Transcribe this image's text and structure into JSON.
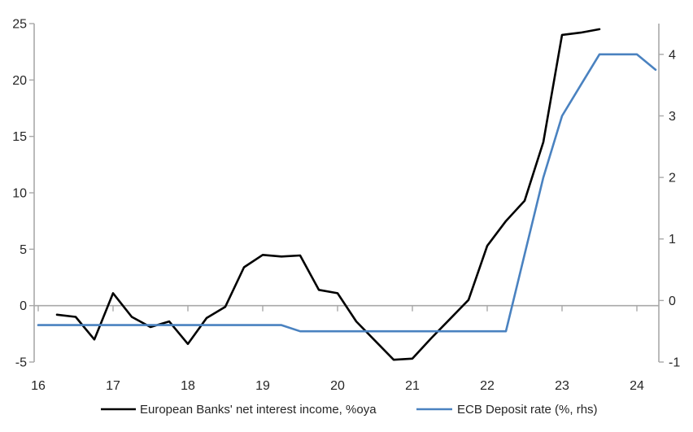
{
  "figure": {
    "background": "#ffffff",
    "axis_color": "#a8a8a8",
    "label_color": "#262626"
  },
  "chart_data": {
    "type": "line",
    "title": "",
    "grid": "zero-line-only",
    "legend_position": "bottom",
    "x_axis": {
      "tick_labels": [
        "16",
        "17",
        "18",
        "19",
        "20",
        "21",
        "22",
        "23",
        "24"
      ],
      "tick_values": [
        16,
        17,
        18,
        19,
        20,
        21,
        22,
        23,
        24
      ],
      "range": [
        16,
        24.3
      ]
    },
    "left_axis": {
      "tick_labels": [
        "-5",
        "0",
        "5",
        "10",
        "15",
        "20",
        "25"
      ],
      "tick_values": [
        -5,
        0,
        5,
        10,
        15,
        20,
        25
      ],
      "range": [
        -5,
        25
      ]
    },
    "right_axis": {
      "tick_labels": [
        "-1",
        "0",
        "1",
        "2",
        "3",
        "4"
      ],
      "tick_values": [
        -1,
        0,
        1,
        2,
        3,
        4
      ],
      "range": [
        -1,
        4.5
      ]
    },
    "series": [
      {
        "name": "European Banks' net interest income, %oya",
        "axis": "left",
        "color": "#000000",
        "x": [
          16.25,
          16.5,
          16.75,
          17.0,
          17.25,
          17.5,
          17.75,
          18.0,
          18.25,
          18.5,
          18.75,
          19.0,
          19.25,
          19.5,
          19.75,
          20.0,
          20.25,
          20.5,
          20.75,
          21.0,
          21.25,
          21.5,
          21.75,
          22.0,
          22.25,
          22.5,
          22.75,
          23.0,
          23.25,
          23.5
        ],
        "values": [
          -0.8,
          -1.0,
          -3.0,
          1.1,
          -1.0,
          -1.9,
          -1.4,
          -3.4,
          -1.1,
          -0.1,
          3.4,
          4.5,
          4.35,
          4.45,
          1.4,
          1.1,
          -1.4,
          -3.1,
          -4.8,
          -4.7,
          -2.9,
          -1.2,
          0.5,
          5.3,
          7.5,
          9.3,
          14.5,
          24.0,
          24.2,
          24.5
        ]
      },
      {
        "name": "ECB Deposit rate (%, rhs)",
        "axis": "right",
        "color": "#4a82c0",
        "x": [
          16.0,
          16.25,
          16.5,
          16.75,
          17.0,
          17.25,
          17.5,
          17.75,
          18.0,
          18.25,
          18.5,
          18.75,
          19.0,
          19.25,
          19.5,
          19.75,
          20.0,
          20.25,
          20.5,
          20.75,
          21.0,
          21.25,
          21.5,
          21.75,
          22.0,
          22.25,
          22.5,
          22.75,
          23.0,
          23.25,
          23.5,
          23.75,
          24.0,
          24.25
        ],
        "values": [
          -0.4,
          -0.4,
          -0.4,
          -0.4,
          -0.4,
          -0.4,
          -0.4,
          -0.4,
          -0.4,
          -0.4,
          -0.4,
          -0.4,
          -0.4,
          -0.4,
          -0.5,
          -0.5,
          -0.5,
          -0.5,
          -0.5,
          -0.5,
          -0.5,
          -0.5,
          -0.5,
          -0.5,
          -0.5,
          -0.5,
          0.75,
          2.0,
          3.0,
          3.5,
          4.0,
          4.0,
          4.0,
          3.75
        ]
      }
    ]
  }
}
